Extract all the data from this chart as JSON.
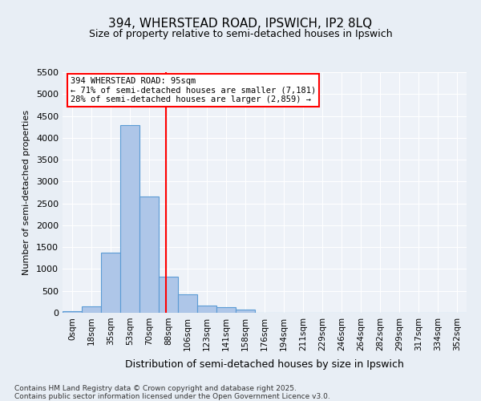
{
  "title_line1": "394, WHERSTEAD ROAD, IPSWICH, IP2 8LQ",
  "title_line2": "Size of property relative to semi-detached houses in Ipswich",
  "xlabel": "Distribution of semi-detached houses by size in Ipswich",
  "ylabel": "Number of semi-detached properties",
  "bin_labels": [
    "0sqm",
    "18sqm",
    "35sqm",
    "53sqm",
    "70sqm",
    "88sqm",
    "106sqm",
    "123sqm",
    "141sqm",
    "158sqm",
    "176sqm",
    "194sqm",
    "211sqm",
    "229sqm",
    "246sqm",
    "264sqm",
    "282sqm",
    "299sqm",
    "317sqm",
    "334sqm",
    "352sqm"
  ],
  "bar_values": [
    30,
    150,
    1380,
    4290,
    2650,
    830,
    430,
    170,
    120,
    80,
    0,
    0,
    0,
    0,
    0,
    0,
    0,
    0,
    0,
    0,
    0
  ],
  "bar_color": "#aec6e8",
  "bar_edge_color": "#5b9bd5",
  "vline_color": "red",
  "annotation_text": "394 WHERSTEAD ROAD: 95sqm\n← 71% of semi-detached houses are smaller (7,181)\n28% of semi-detached houses are larger (2,859) →",
  "annotation_box_color": "white",
  "annotation_box_edge": "red",
  "ylim": [
    0,
    5500
  ],
  "yticks": [
    0,
    500,
    1000,
    1500,
    2000,
    2500,
    3000,
    3500,
    4000,
    4500,
    5000,
    5500
  ],
  "footnote": "Contains HM Land Registry data © Crown copyright and database right 2025.\nContains public sector information licensed under the Open Government Licence v3.0.",
  "bg_color": "#e8eef5",
  "plot_bg_color": "#eef2f8",
  "grid_color": "white"
}
